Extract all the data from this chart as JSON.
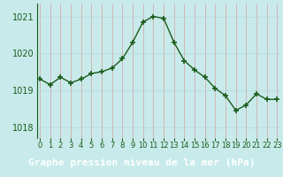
{
  "x": [
    0,
    1,
    2,
    3,
    4,
    5,
    6,
    7,
    8,
    9,
    10,
    11,
    12,
    13,
    14,
    15,
    16,
    17,
    18,
    19,
    20,
    21,
    22,
    23
  ],
  "y": [
    1019.3,
    1019.15,
    1019.35,
    1019.2,
    1019.3,
    1019.45,
    1019.5,
    1019.6,
    1019.85,
    1020.3,
    1020.85,
    1021.0,
    1020.95,
    1020.3,
    1019.8,
    1019.55,
    1019.35,
    1019.05,
    1018.85,
    1018.45,
    1018.6,
    1018.9,
    1018.75,
    1018.75
  ],
  "line_color": "#1a5c1a",
  "marker": "+",
  "marker_size": 4,
  "marker_color": "#1a5c1a",
  "bg_color": "#c8eaea",
  "grid_color": "#b0d8d8",
  "xlabel": "Graphe pression niveau de la mer (hPa)",
  "xlabel_fontsize": 8,
  "ytick_color": "#1a5c1a",
  "xtick_color": "#1a5c1a",
  "yticks": [
    1018,
    1019,
    1020,
    1021
  ],
  "xticks": [
    0,
    1,
    2,
    3,
    4,
    5,
    6,
    7,
    8,
    9,
    10,
    11,
    12,
    13,
    14,
    15,
    16,
    17,
    18,
    19,
    20,
    21,
    22,
    23
  ],
  "ylim": [
    1017.7,
    1021.35
  ],
  "xlim": [
    -0.3,
    23.3
  ],
  "tick_fontsize": 7,
  "bottom_bar_color": "#2d6e2d",
  "label_text_color": "#ffffff",
  "line_width": 1.0,
  "grid_linewidth": 0.5,
  "vgrid_color": "#e08080",
  "hgrid_color": "#b8d8d8"
}
